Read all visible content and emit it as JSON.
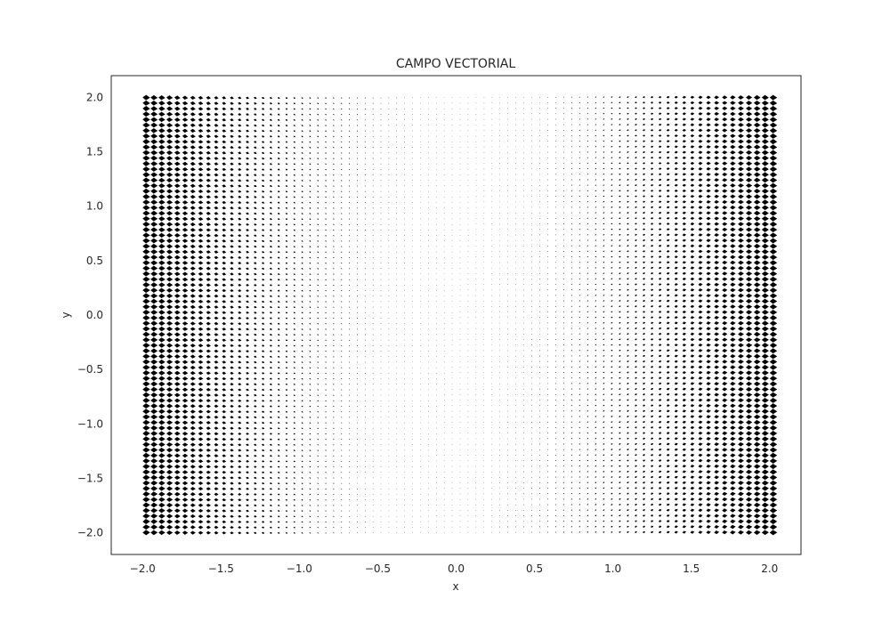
{
  "chart_data": {
    "type": "quiver",
    "title": "CAMPO VECTORIAL",
    "xlabel": "x",
    "ylabel": "y",
    "xlim": [
      -2.2,
      2.2
    ],
    "ylim": [
      -2.2,
      2.2
    ],
    "grid": false,
    "x_ticks": [
      -2.0,
      -1.5,
      -1.0,
      -0.5,
      0.0,
      0.5,
      1.0,
      1.5,
      2.0
    ],
    "x_tick_labels": [
      "−2.0",
      "−1.5",
      "−1.0",
      "−0.5",
      "0.0",
      "0.5",
      "1.0",
      "1.5",
      "2.0"
    ],
    "y_ticks": [
      -2.0,
      -1.5,
      -1.0,
      -0.5,
      0.0,
      0.5,
      1.0,
      1.5,
      2.0
    ],
    "y_tick_labels": [
      "−2.0",
      "−1.5",
      "−1.0",
      "−0.5",
      "0.0",
      "0.5",
      "1.0",
      "1.5",
      "2.0"
    ],
    "grid_x": {
      "start": -2.0,
      "stop": 2.0,
      "count": 80
    },
    "grid_y": {
      "start": -2.0,
      "stop": 2.0,
      "count": 80
    },
    "arrow_color": "#000000",
    "frame_color": "#262626"
  }
}
